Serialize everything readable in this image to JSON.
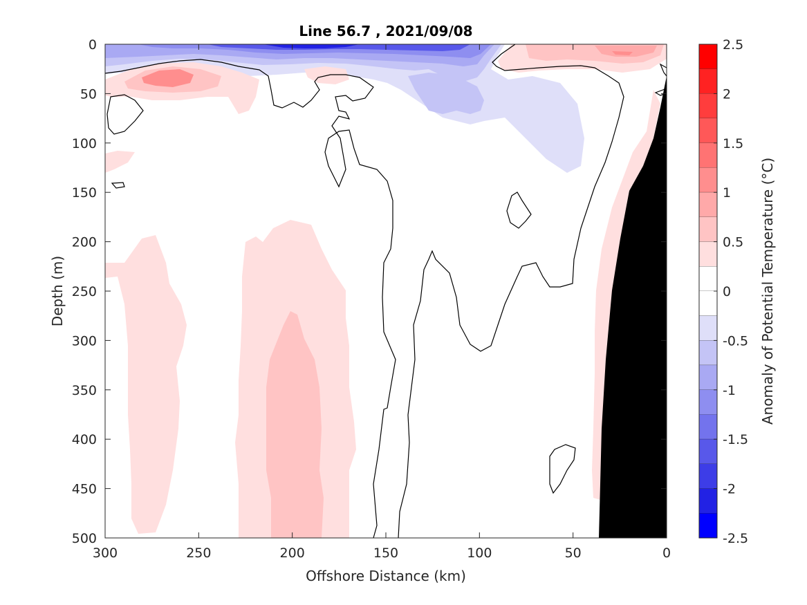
{
  "chart_data": {
    "type": "heatmap",
    "title": "Line 56.7 , 2021/09/08",
    "xlabel": "Offshore Distance (km)",
    "ylabel": "Depth (m)",
    "colorbar_label": "Anomaly of Potential Temperature (°C)",
    "xlim": [
      300,
      0
    ],
    "ylim": [
      0,
      500
    ],
    "x_reversed": true,
    "y_reversed": true,
    "x_ticks": [
      "300",
      "250",
      "200",
      "150",
      "100",
      "50",
      "0"
    ],
    "y_ticks": [
      "0",
      "50",
      "100",
      "150",
      "200",
      "250",
      "300",
      "350",
      "400",
      "450",
      "500"
    ],
    "colorbar_range": [
      -2.5,
      2.5
    ],
    "colorbar_ticks": [
      "2.5",
      "2",
      "1.5",
      "1",
      "0.5",
      "0",
      "-0.5",
      "-1",
      "-1.5",
      "-2",
      "-2.5"
    ],
    "colorbar_levels": [
      2.5,
      2.25,
      2.0,
      1.75,
      1.5,
      1.25,
      1.0,
      0.75,
      0.5,
      0.25,
      0.0,
      -0.25,
      -0.5,
      -0.75,
      -1.0,
      -1.25,
      -1.5,
      -1.75,
      -2.0,
      -2.25,
      -2.5
    ],
    "colorbar_colors": [
      "#ff0000",
      "#ff2222",
      "#ff3d3d",
      "#ff5858",
      "#ff7373",
      "#ff8e8e",
      "#ffa9a9",
      "#ffc4c4",
      "#ffdfdf",
      "#ffffff",
      "#ffffff",
      "#dfdff9",
      "#c4c4f6",
      "#a9a9f3",
      "#8e8ef0",
      "#7373ed",
      "#5858ea",
      "#3d3de7",
      "#2222e4",
      "#0000ff"
    ],
    "features": [
      {
        "name": "surface cold anomaly",
        "x_range": [
          300,
          80
        ],
        "depth_range": [
          0,
          30
        ],
        "min_value": -2.4
      },
      {
        "name": "subsurface cold anomaly",
        "x_range": [
          140,
          40
        ],
        "depth_range": [
          30,
          140
        ],
        "min_value": -0.9
      },
      {
        "name": "nearshore warm anomaly",
        "x_range": [
          85,
          0
        ],
        "depth_range": [
          0,
          30
        ],
        "max_value": 1.2
      },
      {
        "name": "offshore warm core",
        "x_range": [
          285,
          250
        ],
        "depth_range": [
          25,
          55
        ],
        "max_value": 1.0
      },
      {
        "name": "deep warm column",
        "x_range": [
          225,
          165
        ],
        "depth_range": [
          180,
          500
        ],
        "max_value": 0.75
      },
      {
        "name": "deep warm column west",
        "x_range": [
          300,
          255
        ],
        "depth_range": [
          200,
          500
        ],
        "max_value": 0.4
      },
      {
        "name": "continental slope",
        "x_range": [
          33,
          0
        ],
        "depth_range": [
          35,
          500
        ],
        "type": "bathymetry"
      }
    ],
    "grid": false,
    "legend": "none"
  }
}
